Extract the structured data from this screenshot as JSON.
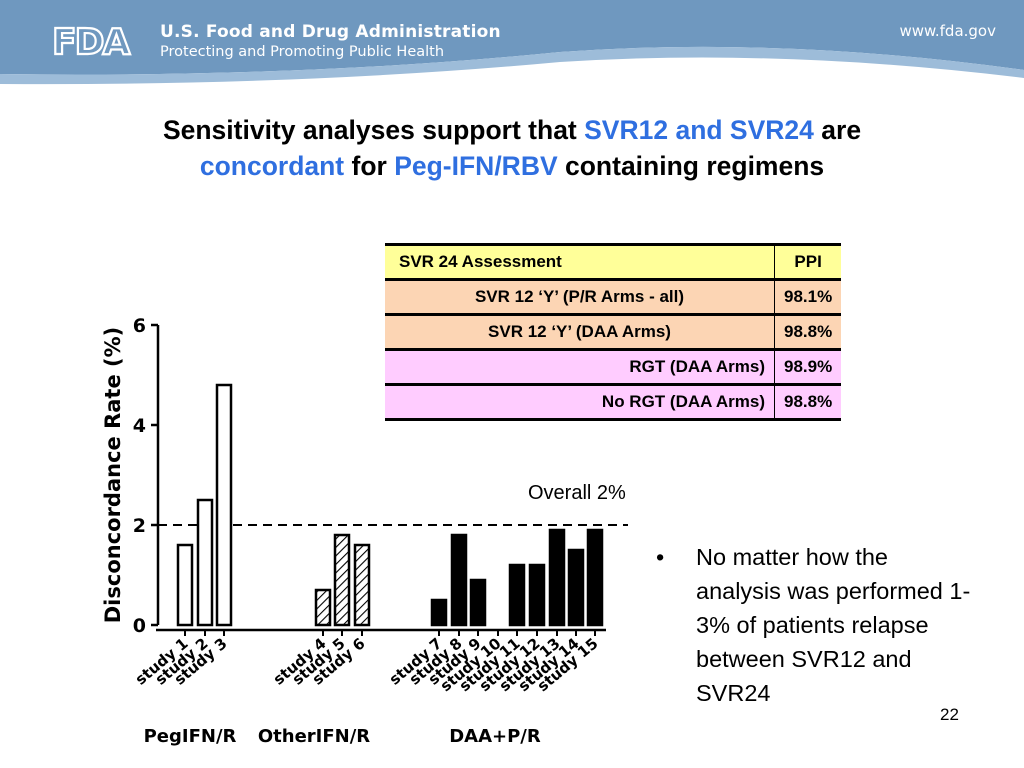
{
  "header": {
    "logo_text": "FDA",
    "agency_name": "U.S. Food and Drug Administration",
    "tagline": "Protecting and Promoting Public Health",
    "website": "www.fda.gov",
    "colors": {
      "banner": "#6f98bf",
      "banner_light": "#9dbcd9"
    }
  },
  "title": {
    "line1_a": "Sensitivity analyses support that ",
    "line1_b": "SVR12 and SVR24",
    "line1_c": " are",
    "line2_a": "concordant",
    "line2_b": " for ",
    "line2_c": "Peg-IFN/RBV",
    "line2_d": " containing regimens",
    "highlight_color": "#2f6fe0"
  },
  "ppi_table": {
    "header": [
      "SVR 24 Assessment",
      "PPI"
    ],
    "rows": [
      {
        "label": "SVR 12 ‘Y’ (P/R Arms - all)",
        "value": "98.1%"
      },
      {
        "label": "SVR 12 ‘Y’ (DAA Arms)",
        "value": "98.8%"
      },
      {
        "label": "RGT (DAA Arms)",
        "value": "98.9%"
      },
      {
        "label": "No RGT (DAA Arms)",
        "value": "98.8%"
      }
    ],
    "colors": {
      "header": "#ffff99",
      "orange": "#fcd5b4",
      "pink": "#ffccff"
    }
  },
  "overall_label": "Overall 2%",
  "bullet_text": "No matter how the analysis was performed 1-3% of patients relapse between SVR12 and SVR24",
  "page_number": "22",
  "chart_data": {
    "type": "bar",
    "ylabel": "Disconcordance Rate (%)",
    "ylim": [
      0,
      6
    ],
    "yticks": [
      "0",
      "2",
      "4",
      "6"
    ],
    "reference_line": 2,
    "categories": [
      "study 1",
      "study 2",
      "study 3",
      "study 4",
      "study 5",
      "study 6",
      "study 7",
      "study 8",
      "study 9",
      "study 10",
      "study 11",
      "study 12",
      "study 13",
      "study 14",
      "study 15"
    ],
    "values": [
      1.6,
      2.5,
      4.8,
      0.7,
      1.8,
      1.6,
      0.5,
      1.8,
      0.9,
      0.0,
      1.2,
      1.2,
      1.9,
      1.5,
      1.9
    ],
    "groups": [
      {
        "label": "PegIFN/R",
        "fill": "open",
        "studies": [
          1,
          2,
          3
        ]
      },
      {
        "label": "OtherIFN/R",
        "fill": "hatched",
        "studies": [
          4,
          5,
          6
        ]
      },
      {
        "label": "DAA+P/R",
        "fill": "solid",
        "studies": [
          7,
          8,
          9,
          10,
          11,
          12,
          13,
          14,
          15
        ]
      }
    ]
  }
}
